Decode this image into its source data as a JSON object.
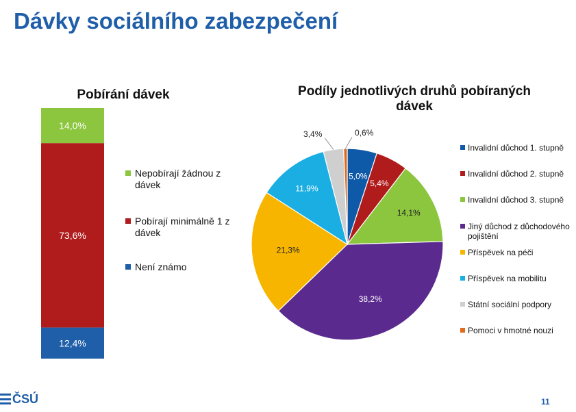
{
  "page": {
    "title": "Dávky sociálního zabezpečení",
    "logo_text": "ČSÚ",
    "page_number": "11"
  },
  "chart_data": [
    {
      "type": "bar",
      "stacked": true,
      "title": "Pobírání dávek",
      "unit": "%",
      "legend_position": "right",
      "series": [
        {
          "name": "Nepobírají žádnou z dávek",
          "value": 14.0,
          "label": "14,0%",
          "color": "#8cc63f"
        },
        {
          "name": "Pobírají minimálně 1 z dávek",
          "value": 73.6,
          "label": "73,6%",
          "color": "#b01c1c"
        },
        {
          "name": "Není známo",
          "value": 12.4,
          "label": "12,4%",
          "color": "#1f5ea8"
        }
      ]
    },
    {
      "type": "pie",
      "title": "Podíly jednotlivých druhů pobíraných dávek",
      "unit": "%",
      "legend_position": "right",
      "slices": [
        {
          "name": "Invalidní důchod 1. stupně",
          "value": 5.0,
          "label": "5,0%",
          "color": "#0f5aa8"
        },
        {
          "name": "Invalidní důchod 2. stupně",
          "value": 5.4,
          "label": "5,4%",
          "color": "#b01c1c"
        },
        {
          "name": "Invalidní důchod 3. stupně",
          "value": 14.1,
          "label": "14,1%",
          "color": "#8cc63f"
        },
        {
          "name": "Jiný důchod z důchodového pojištění",
          "value": 38.2,
          "label": "38,2%",
          "color": "#5b2a8e"
        },
        {
          "name": "Příspěvek na péči",
          "value": 21.3,
          "label": "21,3%",
          "color": "#f7b500"
        },
        {
          "name": "Příspěvek na mobilitu",
          "value": 11.9,
          "label": "11,9%",
          "color": "#1aaee3"
        },
        {
          "name": "Státní sociální podpory",
          "value": 3.4,
          "label": "3,4%",
          "color": "#cfcfcf"
        },
        {
          "name": "Pomoci v hmotné nouzi",
          "value": 0.6,
          "label": "0,6%",
          "color": "#e06a1b"
        }
      ]
    }
  ]
}
